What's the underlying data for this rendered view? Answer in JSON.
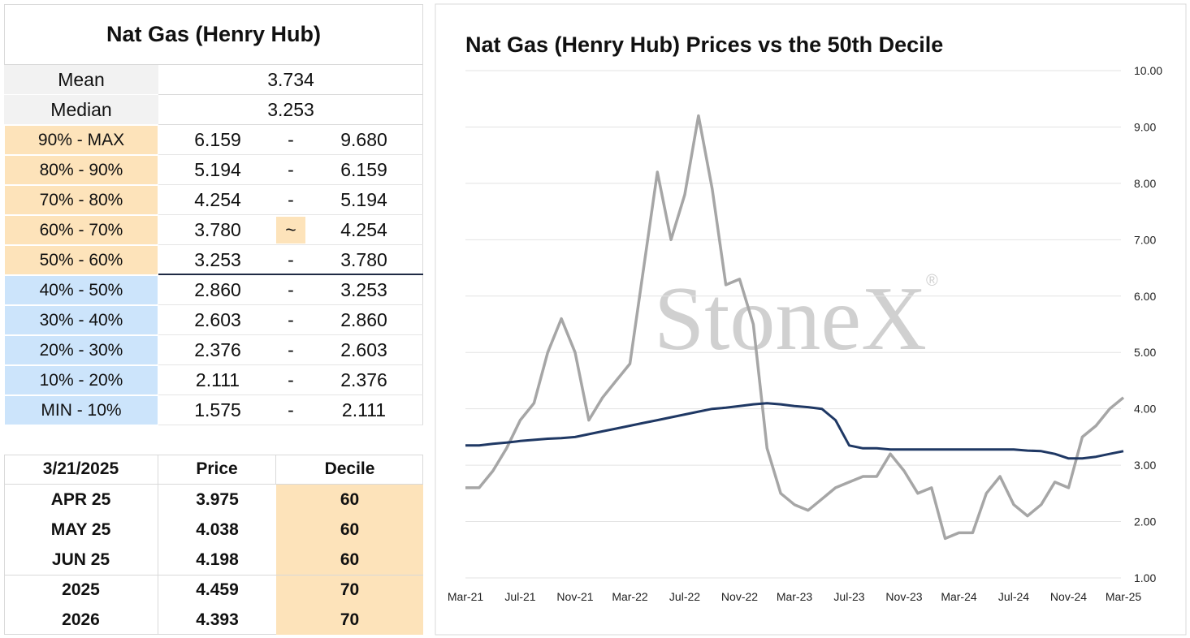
{
  "decile_table": {
    "title": "Nat Gas (Henry Hub)",
    "stats": [
      [
        "Mean",
        "3.734"
      ],
      [
        "Median",
        "3.253"
      ]
    ],
    "rows": [
      [
        "90% - MAX",
        "6.159",
        "-",
        "9.680"
      ],
      [
        "80% - 90%",
        "5.194",
        "-",
        "6.159"
      ],
      [
        "70% - 80%",
        "4.254",
        "-",
        "5.194"
      ],
      [
        "60% - 70%",
        "3.780",
        "~",
        "4.254"
      ],
      [
        "50% - 60%",
        "3.253",
        "-",
        "3.780"
      ],
      [
        "40% - 50%",
        "2.860",
        "-",
        "3.253"
      ],
      [
        "30% - 40%",
        "2.603",
        "-",
        "2.860"
      ],
      [
        "20% - 30%",
        "2.376",
        "-",
        "2.603"
      ],
      [
        "10% - 20%",
        "2.111",
        "-",
        "2.376"
      ],
      [
        "MIN - 10%",
        "1.575",
        "-",
        "2.111"
      ]
    ]
  },
  "price_table": {
    "header": [
      "3/21/2025",
      "Price",
      "Decile"
    ],
    "rows": [
      [
        "APR 25",
        "3.975",
        "60"
      ],
      [
        "MAY 25",
        "4.038",
        "60"
      ],
      [
        "JUN 25",
        "4.198",
        "60"
      ],
      [
        "2025",
        "4.459",
        "70"
      ],
      [
        "2026",
        "4.393",
        "70"
      ]
    ]
  },
  "chart_data": {
    "type": "line",
    "title": "Nat Gas (Henry Hub) Prices vs the 50th Decile",
    "watermark": "StoneX",
    "watermark_mark": "®",
    "x": [
      "Mar-21",
      "Apr-21",
      "May-21",
      "Jun-21",
      "Jul-21",
      "Aug-21",
      "Sep-21",
      "Oct-21",
      "Nov-21",
      "Dec-21",
      "Jan-22",
      "Feb-22",
      "Mar-22",
      "Apr-22",
      "May-22",
      "Jun-22",
      "Jul-22",
      "Aug-22",
      "Sep-22",
      "Oct-22",
      "Nov-22",
      "Dec-22",
      "Jan-23",
      "Feb-23",
      "Mar-23",
      "Apr-23",
      "May-23",
      "Jun-23",
      "Jul-23",
      "Aug-23",
      "Sep-23",
      "Oct-23",
      "Nov-23",
      "Dec-23",
      "Jan-24",
      "Feb-24",
      "Mar-24",
      "Apr-24",
      "May-24",
      "Jun-24",
      "Jul-24",
      "Aug-24",
      "Sep-24",
      "Oct-24",
      "Nov-24",
      "Dec-24",
      "Jan-25",
      "Feb-25",
      "Mar-25"
    ],
    "xticks": [
      "Mar-21",
      "Jul-21",
      "Nov-21",
      "Mar-22",
      "Jul-22",
      "Nov-22",
      "Mar-23",
      "Jul-23",
      "Nov-23",
      "Mar-24",
      "Jul-24",
      "Nov-24",
      "Mar-25"
    ],
    "series": [
      {
        "color": "#a6a6a6",
        "values": [
          2.6,
          2.6,
          2.9,
          3.3,
          3.8,
          4.1,
          5.0,
          5.6,
          5.0,
          3.8,
          4.2,
          4.5,
          4.8,
          6.5,
          8.2,
          7.0,
          7.8,
          9.2,
          7.9,
          6.2,
          6.3,
          5.5,
          3.3,
          2.5,
          2.3,
          2.2,
          2.4,
          2.6,
          2.7,
          2.8,
          2.8,
          3.2,
          2.9,
          2.5,
          2.6,
          1.7,
          1.8,
          1.8,
          2.5,
          2.8,
          2.3,
          2.1,
          2.3,
          2.7,
          2.6,
          3.5,
          3.7,
          4.0,
          4.2
        ]
      },
      {
        "color": "#1f3864",
        "values": [
          3.35,
          3.35,
          3.38,
          3.4,
          3.43,
          3.45,
          3.47,
          3.48,
          3.5,
          3.55,
          3.6,
          3.65,
          3.7,
          3.75,
          3.8,
          3.85,
          3.9,
          3.95,
          4.0,
          4.02,
          4.05,
          4.08,
          4.1,
          4.08,
          4.05,
          4.03,
          4.0,
          3.8,
          3.35,
          3.3,
          3.3,
          3.28,
          3.28,
          3.28,
          3.28,
          3.28,
          3.28,
          3.28,
          3.28,
          3.28,
          3.28,
          3.26,
          3.25,
          3.2,
          3.12,
          3.12,
          3.15,
          3.2,
          3.25
        ]
      }
    ],
    "ylim": [
      1,
      10
    ],
    "yticks": [
      {
        "value": 1,
        "label": "1.00"
      },
      {
        "value": 2,
        "label": "2.00"
      },
      {
        "value": 3,
        "label": "3.00"
      },
      {
        "value": 4,
        "label": "4.00"
      },
      {
        "value": 5,
        "label": "5.00"
      },
      {
        "value": 6,
        "label": "6.00"
      },
      {
        "value": 7,
        "label": "7.00"
      },
      {
        "value": 8,
        "label": "8.00"
      },
      {
        "value": 9,
        "label": "9.00"
      },
      {
        "value": 10,
        "label": "10.00"
      }
    ],
    "grid": true
  }
}
